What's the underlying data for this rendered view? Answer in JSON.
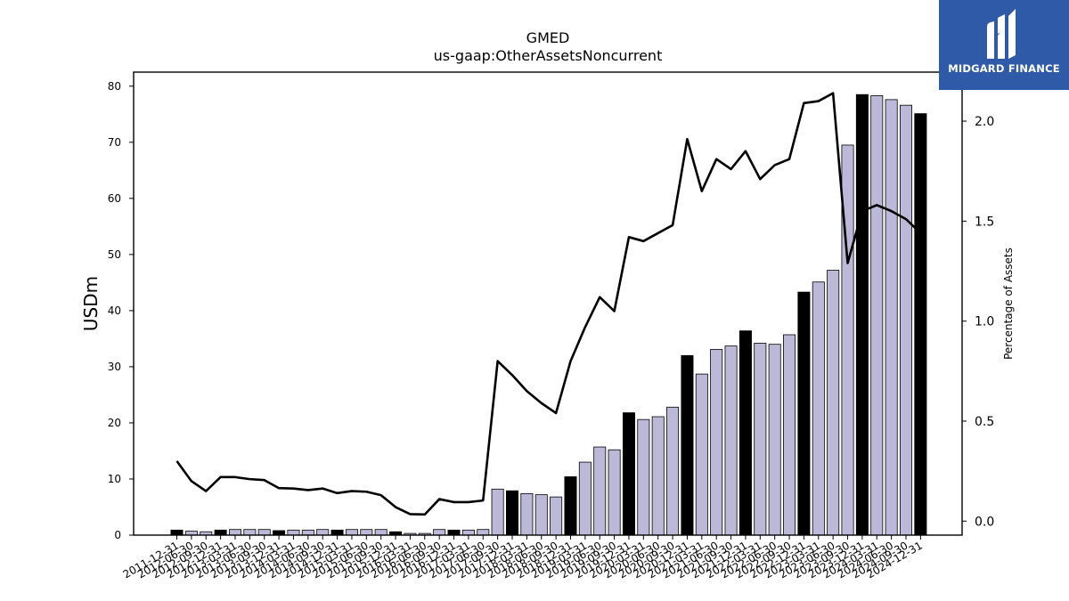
{
  "title": "GMED",
  "subtitle": "us-gaap:OtherAssetsNoncurrent",
  "brand": {
    "name": "MIDGARD FINANCE",
    "color": "#2f5aa8"
  },
  "colors": {
    "bar_fill": "#bcb9d8",
    "bar_highlight": "#000000",
    "line": "#000000"
  },
  "chart_data": {
    "type": "bar",
    "categories": [
      "2011-12-31",
      "2012-06-30",
      "2012-09-30",
      "2012-12-31",
      "2013-03-31",
      "2013-06-30",
      "2013-09-30",
      "2013-12-31",
      "2014-03-31",
      "2014-06-30",
      "2014-09-30",
      "2014-12-31",
      "2015-03-31",
      "2015-06-30",
      "2015-09-30",
      "2015-12-31",
      "2016-03-31",
      "2016-06-30",
      "2016-09-30",
      "2016-12-31",
      "2017-03-31",
      "2017-06-30",
      "2017-09-30",
      "2017-12-31",
      "2018-03-31",
      "2018-06-30",
      "2018-09-30",
      "2018-12-31",
      "2019-03-31",
      "2019-06-30",
      "2019-09-30",
      "2019-12-31",
      "2020-03-31",
      "2020-06-30",
      "2020-09-30",
      "2020-12-31",
      "2021-03-31",
      "2021-06-30",
      "2021-09-30",
      "2021-12-31",
      "2022-03-31",
      "2022-06-30",
      "2022-09-30",
      "2022-12-31",
      "2023-03-31",
      "2023-06-30",
      "2023-09-30",
      "2023-12-31",
      "2024-03-31",
      "2024-06-30",
      "2024-09-30",
      "2024-12-31"
    ],
    "series": [
      {
        "axis": "left",
        "values": [
          0.9,
          0.7,
          0.6,
          0.9,
          1.0,
          1.0,
          1.0,
          0.8,
          0.9,
          0.9,
          1.0,
          0.9,
          1.0,
          1.0,
          1.0,
          0.6,
          0.3,
          0.3,
          1.0,
          0.9,
          0.9,
          1.0,
          8.2,
          7.9,
          7.4,
          7.2,
          6.8,
          10.4,
          13.0,
          15.7,
          15.2,
          21.8,
          20.6,
          21.1,
          22.8,
          32.0,
          28.7,
          33.1,
          33.7,
          36.4,
          34.2,
          34.0,
          35.7,
          43.3,
          45.1,
          47.2,
          69.5,
          78.5,
          78.3,
          77.6,
          76.6,
          75.1
        ],
        "highlighted": [
          0,
          3,
          7,
          11,
          15,
          19,
          23,
          27,
          31,
          35,
          39,
          43,
          47,
          51
        ]
      },
      {
        "axis": "right",
        "type": "line",
        "values": [
          0.3,
          0.2,
          0.15,
          0.22,
          0.22,
          0.21,
          0.205,
          0.165,
          0.163,
          0.155,
          0.163,
          0.14,
          0.15,
          0.147,
          0.13,
          0.07,
          0.035,
          0.033,
          0.11,
          0.095,
          0.095,
          0.103,
          0.8,
          0.73,
          0.65,
          0.59,
          0.54,
          0.8,
          0.97,
          1.12,
          1.05,
          1.42,
          1.4,
          1.44,
          1.48,
          1.91,
          1.65,
          1.81,
          1.76,
          1.85,
          1.71,
          1.78,
          1.81,
          2.09,
          2.1,
          2.14,
          1.29,
          1.55,
          1.58,
          1.55,
          1.51,
          1.44
        ]
      }
    ],
    "ylabel": "USDm",
    "y2label": "Percentage of Assets",
    "ylim": [
      0,
      82.5
    ],
    "y2lim": [
      -0.07,
      2.245
    ],
    "yticks": [
      0,
      10,
      20,
      30,
      40,
      50,
      60,
      70,
      80
    ],
    "y2ticks": [
      "0.0",
      "0.5",
      "1.0",
      "1.5",
      "2.0"
    ],
    "grid": false,
    "legend": "none"
  }
}
